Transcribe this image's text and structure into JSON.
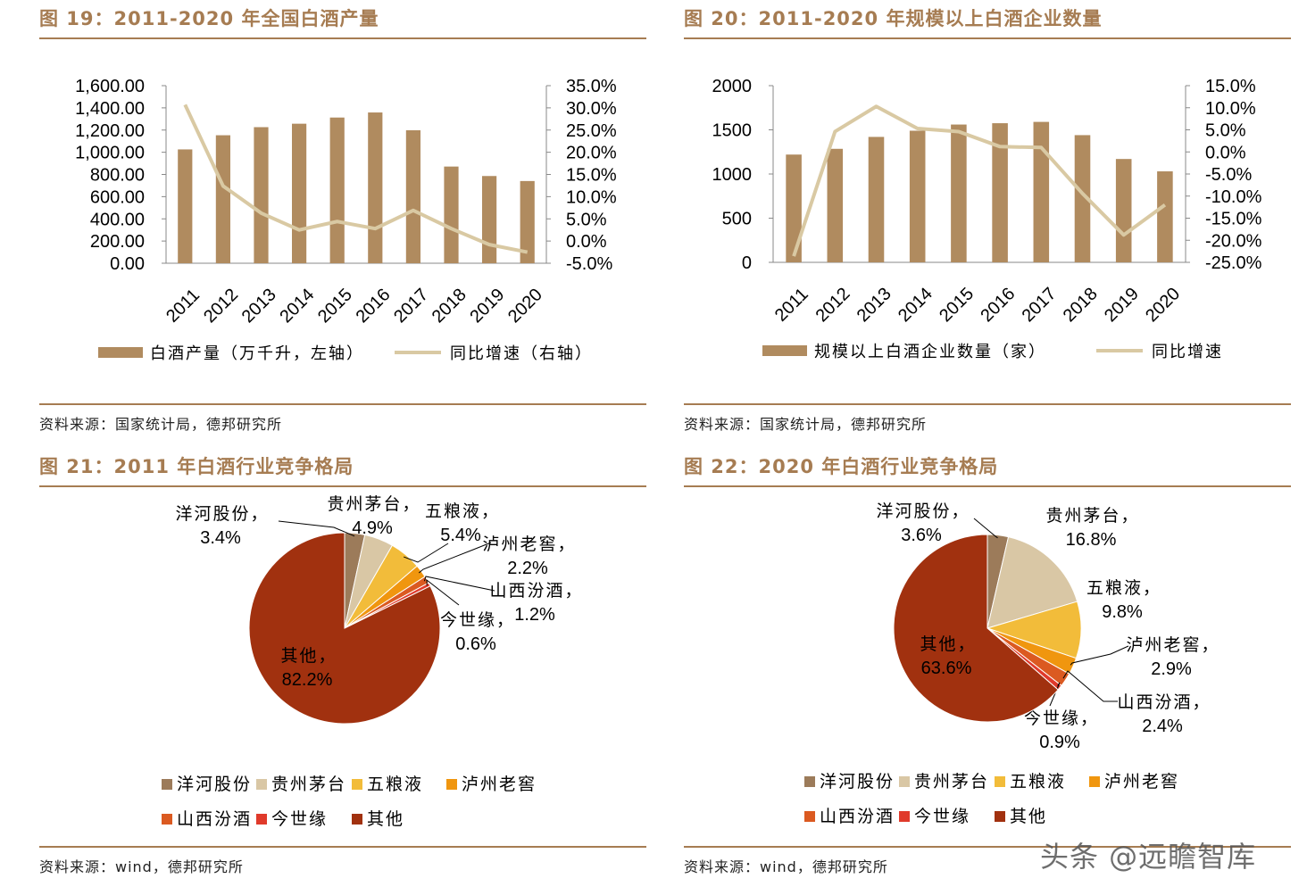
{
  "panels": [
    {
      "title": "图 19：2011-2020 年全国白酒产量",
      "source": "资料来源：国家统计局，德邦研究所"
    },
    {
      "title": "图 20：2011-2020 年规模以上白酒企业数量",
      "source": "资料来源：国家统计局，德邦研究所"
    },
    {
      "title": "图 21：2011 年白酒行业竞争格局",
      "source": "资料来源：wind，德邦研究所"
    },
    {
      "title": "图 22：2020 年白酒行业竞争格局",
      "source": "资料来源：wind，德邦研究所"
    }
  ],
  "watermark": "头条 @远瞻智库",
  "chart_data": [
    {
      "type": "bar",
      "categories": [
        "2011",
        "2012",
        "2013",
        "2014",
        "2015",
        "2016",
        "2017",
        "2018",
        "2019",
        "2020"
      ],
      "series": [
        {
          "name": "白酒产量（万千升，左轴）",
          "type": "bar",
          "axis": "left",
          "color": "#b08b5f",
          "values": [
            1025.6,
            1153.2,
            1226.2,
            1257.1,
            1312.8,
            1358.4,
            1198.1,
            871.2,
            785.9,
            740.7
          ]
        },
        {
          "name": "同比增速（右轴）",
          "type": "line",
          "axis": "right",
          "color": "#d9c9a3",
          "values": [
            30.7,
            12.4,
            6.3,
            2.5,
            4.4,
            2.8,
            6.9,
            2.8,
            -0.8,
            -2.5
          ]
        }
      ],
      "yleft": {
        "min": 0,
        "max": 1600,
        "step": 200,
        "ticks": [
          "0.00",
          "200.00",
          "400.00",
          "600.00",
          "800.00",
          "1,000.00",
          "1,200.00",
          "1,400.00",
          "1,600.00"
        ]
      },
      "yright": {
        "min": -5,
        "max": 35,
        "step": 5,
        "ticks": [
          "-5.0%",
          "0.0%",
          "5.0%",
          "10.0%",
          "15.0%",
          "20.0%",
          "25.0%",
          "30.0%",
          "35.0%"
        ]
      },
      "legend": [
        "白酒产量（万千升，左轴）",
        "同比增速（右轴）"
      ]
    },
    {
      "type": "bar",
      "categories": [
        "2011",
        "2012",
        "2013",
        "2014",
        "2015",
        "2016",
        "2017",
        "2018",
        "2019",
        "2020"
      ],
      "series": [
        {
          "name": "规模以上白酒企业数量（家）",
          "type": "bar",
          "axis": "left",
          "color": "#b08b5f",
          "values": [
            1220,
            1285,
            1420,
            1490,
            1560,
            1575,
            1590,
            1440,
            1170,
            1030
          ]
        },
        {
          "name": "同比增速",
          "type": "line",
          "axis": "right",
          "color": "#d9c9a3",
          "values": [
            -23.6,
            4.6,
            10.3,
            5.3,
            4.6,
            1.2,
            1.0,
            -9.4,
            -18.8,
            -12.0
          ]
        }
      ],
      "yleft": {
        "min": 0,
        "max": 2000,
        "step": 500,
        "ticks": [
          "0",
          "500",
          "1000",
          "1500",
          "2000"
        ]
      },
      "yright": {
        "min": -25,
        "max": 15,
        "step": 5,
        "ticks": [
          "-25.0%",
          "-20.0%",
          "-15.0%",
          "-10.0%",
          "-5.0%",
          "0.0%",
          "5.0%",
          "10.0%",
          "15.0%"
        ]
      },
      "legend": [
        "规模以上白酒企业数量（家）",
        "同比增速"
      ]
    },
    {
      "type": "pie",
      "slices": [
        {
          "name": "洋河股份",
          "value": 3.4,
          "label": "3.4%",
          "color": "#9c7b5a"
        },
        {
          "name": "贵州茅台",
          "value": 4.9,
          "label": "4.9%",
          "color": "#d9c7a5"
        },
        {
          "name": "五粮液",
          "value": 5.4,
          "label": "5.4%",
          "color": "#f2bc3a"
        },
        {
          "name": "泸州老窖",
          "value": 2.2,
          "label": "2.2%",
          "color": "#f0960f"
        },
        {
          "name": "山西汾酒",
          "value": 1.2,
          "label": "1.2%",
          "color": "#db5a21"
        },
        {
          "name": "今世缘",
          "value": 0.6,
          "label": "0.6%",
          "color": "#e03a2b"
        },
        {
          "name": "其他",
          "value": 82.2,
          "label": "82.2%",
          "color": "#a1310f"
        }
      ]
    },
    {
      "type": "pie",
      "slices": [
        {
          "name": "洋河股份",
          "value": 3.6,
          "label": "3.6%",
          "color": "#9c7b5a"
        },
        {
          "name": "贵州茅台",
          "value": 16.8,
          "label": "16.8%",
          "color": "#d9c7a5"
        },
        {
          "name": "五粮液",
          "value": 9.8,
          "label": "9.8%",
          "color": "#f2bc3a"
        },
        {
          "name": "泸州老窖",
          "value": 2.9,
          "label": "2.9%",
          "color": "#f0960f"
        },
        {
          "name": "山西汾酒",
          "value": 2.4,
          "label": "2.4%",
          "color": "#db5a21"
        },
        {
          "name": "今世缘",
          "value": 0.9,
          "label": "0.9%",
          "color": "#e03a2b"
        },
        {
          "name": "其他",
          "value": 63.6,
          "label": "63.6%",
          "color": "#a1310f"
        }
      ]
    }
  ]
}
